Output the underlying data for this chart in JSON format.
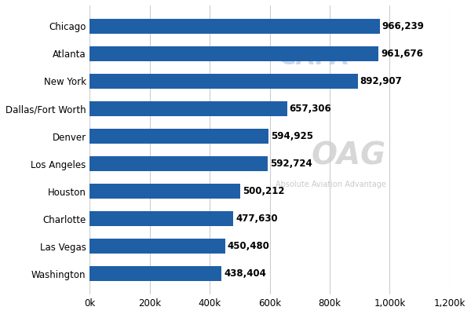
{
  "categories": [
    "Washington",
    "Las Vegas",
    "Charlotte",
    "Houston",
    "Los Angeles",
    "Denver",
    "Dallas/Fort Worth",
    "New York",
    "Atlanta",
    "Chicago"
  ],
  "values": [
    438404,
    450480,
    477630,
    500212,
    592724,
    594925,
    657306,
    892907,
    961676,
    966239
  ],
  "labels": [
    "438,404",
    "450,480",
    "477,630",
    "500,212",
    "592,724",
    "594,925",
    "657,306",
    "892,907",
    "961,676",
    "966,239"
  ],
  "bar_color": "#1f5fa6",
  "background_color": "#ffffff",
  "xlim": [
    0,
    1200000
  ],
  "xtick_values": [
    0,
    200000,
    400000,
    600000,
    800000,
    1000000,
    1200000
  ],
  "xtick_labels": [
    "0k",
    "200k",
    "400k",
    "600k",
    "800k",
    "1,000k",
    "1,200k"
  ],
  "bar_height": 0.55,
  "label_fontsize": 8.5,
  "tick_fontsize": 8.5,
  "grid_color": "#cccccc"
}
